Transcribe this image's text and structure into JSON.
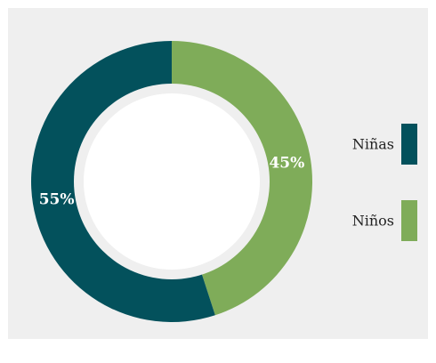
{
  "chart_data": {
    "type": "pie",
    "variant": "donut",
    "title": "",
    "legend_position": "right",
    "slices": [
      {
        "label": "Niños",
        "value": 45,
        "display": "45%",
        "color": "#7fac59"
      },
      {
        "label": "Niñas",
        "value": 55,
        "display": "55%",
        "color": "#03515c"
      }
    ],
    "legend": [
      {
        "label": "Niñas",
        "color": "#03515c"
      },
      {
        "label": "Niños",
        "color": "#7fac59"
      }
    ]
  }
}
